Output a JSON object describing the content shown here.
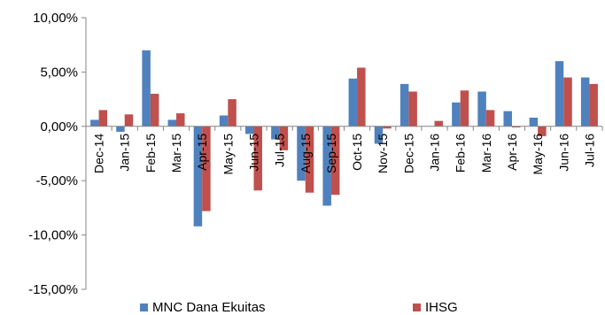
{
  "chart_data": {
    "type": "bar",
    "title": "",
    "xlabel": "",
    "ylabel": "",
    "ylim": [
      -15,
      10
    ],
    "y_ticks": [
      "10,00%",
      "5,00%",
      "0,00%",
      "-5,00%",
      "-10,00%",
      "-15,00%"
    ],
    "grid": false,
    "legend_position": "bottom",
    "categories": [
      "Dec-14",
      "Jan-15",
      "Feb-15",
      "Mar-15",
      "Apr-15",
      "May-15",
      "Jun-15",
      "Jul-15",
      "Aug-15",
      "Sep-15",
      "Oct-15",
      "Nov-15",
      "Dec-15",
      "Jan-16",
      "Feb-16",
      "Mar-16",
      "Apr-16",
      "May-16",
      "Jun-16",
      "Jul-16"
    ],
    "series": [
      {
        "name": "MNC Dana Ekuitas",
        "color": "#4F81BD",
        "values": [
          0.6,
          -0.5,
          7.0,
          0.6,
          -9.2,
          1.0,
          -0.7,
          -1.2,
          -5.0,
          -7.3,
          4.4,
          -1.6,
          3.9,
          0.0,
          2.2,
          3.2,
          1.4,
          0.8,
          6.0,
          4.5
        ]
      },
      {
        "name": "IHSG",
        "color": "#C0504D",
        "values": [
          1.5,
          1.1,
          3.0,
          1.2,
          -7.8,
          2.5,
          -5.9,
          -2.2,
          -6.1,
          -6.3,
          5.4,
          -0.2,
          3.2,
          0.5,
          3.3,
          1.5,
          -0.1,
          -0.9,
          4.5,
          3.9
        ]
      }
    ]
  }
}
